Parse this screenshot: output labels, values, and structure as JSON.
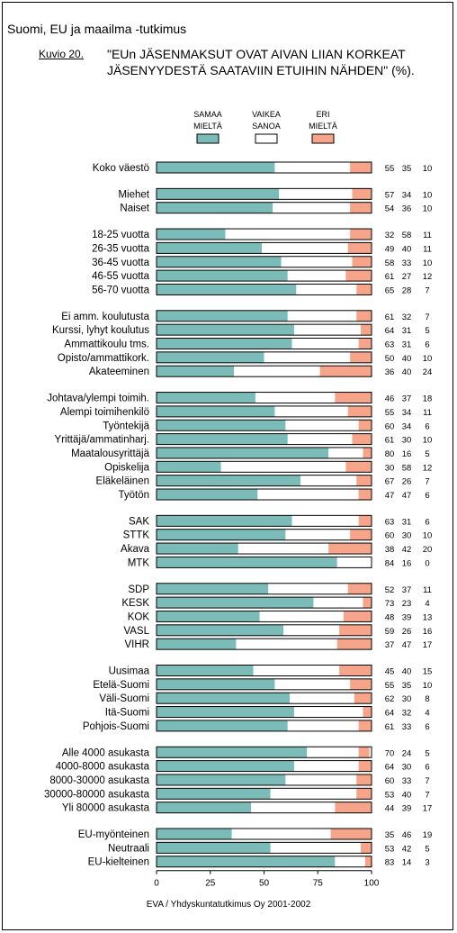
{
  "header": "Suomi, EU ja maailma -tutkimus",
  "figure_label": "Kuvio 20.",
  "figure_title": "\"EUn JÄSENMAKSUT OVAT AIVAN LIIAN KORKEAT JÄSENYYDESTÄ SAATAVIIN ETUIHIN NÄHDEN\" (%).",
  "footer": "EVA / Yhdyskuntatutkimus Oy 2001-2002",
  "colors": {
    "samaa": "#7bbcb8",
    "vaikea": "#ffffff",
    "eri": "#f7a58a"
  },
  "chart_data": {
    "type": "bar",
    "orientation": "horizontal",
    "stacked": true,
    "xlim": [
      0,
      100
    ],
    "xticks": [
      0,
      25,
      50,
      75,
      100
    ],
    "legend": [
      "SAMAA MIELTÄ",
      "VAIKEA SANOA",
      "ERI MIELTÄ"
    ],
    "legend_placement": "top",
    "groups": [
      [
        {
          "label": "Koko väestö",
          "values": [
            55,
            35,
            10
          ]
        }
      ],
      [
        {
          "label": "Miehet",
          "values": [
            57,
            34,
            10
          ]
        },
        {
          "label": "Naiset",
          "values": [
            54,
            36,
            10
          ]
        }
      ],
      [
        {
          "label": "18-25 vuotta",
          "values": [
            32,
            58,
            11
          ]
        },
        {
          "label": "26-35 vuotta",
          "values": [
            49,
            40,
            11
          ]
        },
        {
          "label": "36-45 vuotta",
          "values": [
            58,
            33,
            10
          ]
        },
        {
          "label": "46-55 vuotta",
          "values": [
            61,
            27,
            12
          ]
        },
        {
          "label": "56-70 vuotta",
          "values": [
            65,
            28,
            7
          ]
        }
      ],
      [
        {
          "label": "Ei amm. koulutusta",
          "values": [
            61,
            32,
            7
          ]
        },
        {
          "label": "Kurssi, lyhyt koulutus",
          "values": [
            64,
            31,
            5
          ]
        },
        {
          "label": "Ammattikoulu tms.",
          "values": [
            63,
            31,
            6
          ]
        },
        {
          "label": "Opisto/ammattikork.",
          "values": [
            50,
            40,
            10
          ]
        },
        {
          "label": "Akateeminen",
          "values": [
            36,
            40,
            24
          ]
        }
      ],
      [
        {
          "label": "Johtava/ylempi toimih.",
          "values": [
            46,
            37,
            18
          ]
        },
        {
          "label": "Alempi toimihenkilö",
          "values": [
            55,
            34,
            11
          ]
        },
        {
          "label": "Työntekijä",
          "values": [
            60,
            34,
            6
          ]
        },
        {
          "label": "Yrittäjä/ammatinharj.",
          "values": [
            61,
            30,
            10
          ]
        },
        {
          "label": "Maatalousyrittäjä",
          "values": [
            80,
            16,
            5
          ]
        },
        {
          "label": "Opiskelija",
          "values": [
            30,
            58,
            12
          ]
        },
        {
          "label": "Eläkeläinen",
          "values": [
            67,
            26,
            7
          ]
        },
        {
          "label": "Työtön",
          "values": [
            47,
            47,
            6
          ]
        }
      ],
      [
        {
          "label": "SAK",
          "values": [
            63,
            31,
            6
          ]
        },
        {
          "label": "STTK",
          "values": [
            60,
            30,
            10
          ]
        },
        {
          "label": "Akava",
          "values": [
            38,
            42,
            20
          ]
        },
        {
          "label": "MTK",
          "values": [
            84,
            16,
            0
          ]
        }
      ],
      [
        {
          "label": "SDP",
          "values": [
            52,
            37,
            11
          ]
        },
        {
          "label": "KESK",
          "values": [
            73,
            23,
            4
          ]
        },
        {
          "label": "KOK",
          "values": [
            48,
            39,
            13
          ]
        },
        {
          "label": "VASL",
          "values": [
            59,
            26,
            16
          ]
        },
        {
          "label": "VIHR",
          "values": [
            37,
            47,
            17
          ]
        }
      ],
      [
        {
          "label": "Uusimaa",
          "values": [
            45,
            40,
            15
          ]
        },
        {
          "label": "Etelä-Suomi",
          "values": [
            55,
            35,
            10
          ]
        },
        {
          "label": "Väli-Suomi",
          "values": [
            62,
            30,
            8
          ]
        },
        {
          "label": "Itä-Suomi",
          "values": [
            64,
            32,
            4
          ]
        },
        {
          "label": "Pohjois-Suomi",
          "values": [
            61,
            33,
            6
          ]
        }
      ],
      [
        {
          "label": "Alle 4000 asukasta",
          "values": [
            70,
            24,
            5
          ]
        },
        {
          "label": "4000-8000 asukasta",
          "values": [
            64,
            30,
            6
          ]
        },
        {
          "label": "8000-30000 asukasta",
          "values": [
            60,
            33,
            7
          ]
        },
        {
          "label": "30000-80000 asukasta",
          "values": [
            53,
            40,
            7
          ]
        },
        {
          "label": "Yli 80000 asukasta",
          "values": [
            44,
            39,
            17
          ]
        }
      ],
      [
        {
          "label": "EU-myönteinen",
          "values": [
            35,
            46,
            19
          ]
        },
        {
          "label": "Neutraali",
          "values": [
            53,
            42,
            5
          ]
        },
        {
          "label": "EU-kielteinen",
          "values": [
            83,
            14,
            3
          ]
        }
      ]
    ]
  }
}
